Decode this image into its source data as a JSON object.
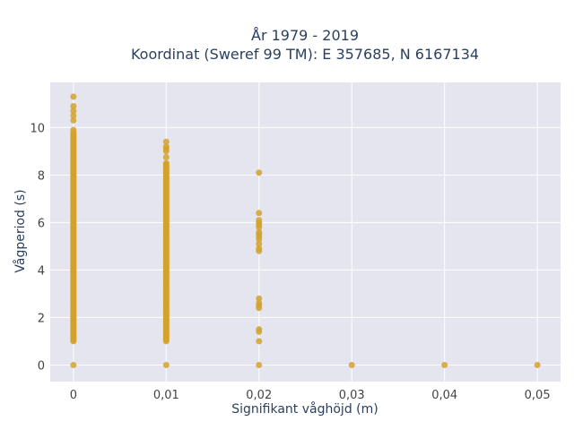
{
  "chart_data": {
    "type": "scatter",
    "title_line1": "År 1979 - 2019",
    "title_line2": "Koordinat (Sweref 99 TM): E 357685, N 6167134",
    "xlabel": "Signifikant våghöjd (m)",
    "ylabel": "Vågperiod (s)",
    "xlim": [
      -0.0025,
      0.0525
    ],
    "ylim": [
      -0.7,
      11.9
    ],
    "x_ticks": [
      0,
      0.01,
      0.02,
      0.03,
      0.04,
      0.05
    ],
    "x_tick_labels": [
      "0",
      "0,01",
      "0,02",
      "0,03",
      "0,04",
      "0,05"
    ],
    "y_ticks": [
      0,
      2,
      4,
      6,
      8,
      10
    ],
    "y_tick_labels": [
      "0",
      "2",
      "4",
      "6",
      "8",
      "10"
    ],
    "grid": true,
    "colors": {
      "marker": "#d4a22c",
      "plot_bg": "#e5e5ef",
      "grid": "#ffffff"
    },
    "columns": [
      {
        "x": 0,
        "dense_range": [
          1.0,
          9.8
        ],
        "extra_y": [
          0,
          9.9,
          10.3,
          10.5,
          10.7,
          10.9,
          11.3
        ]
      },
      {
        "x": 0.01,
        "dense_range": [
          1.0,
          8.5
        ],
        "extra_y": [
          0,
          8.75,
          9.0,
          9.1,
          9.2,
          9.4
        ]
      },
      {
        "x": 0.02,
        "dense_range": null,
        "extra_y": [
          0,
          1.0,
          1.4,
          1.5,
          2.4,
          2.5,
          2.6,
          2.8,
          4.8,
          4.9,
          5.1,
          5.3,
          5.4,
          5.5,
          5.6,
          5.8,
          5.9,
          6.0,
          6.1,
          6.4,
          8.1
        ]
      },
      {
        "x": 0.03,
        "dense_range": null,
        "extra_y": [
          0
        ]
      },
      {
        "x": 0.04,
        "dense_range": null,
        "extra_y": [
          0
        ]
      },
      {
        "x": 0.05,
        "dense_range": null,
        "extra_y": [
          0
        ]
      }
    ]
  }
}
